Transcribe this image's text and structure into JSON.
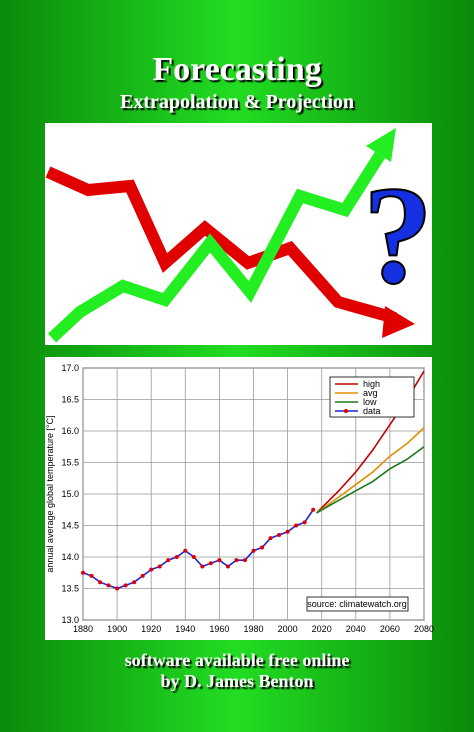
{
  "cover": {
    "title": "Forecasting",
    "subtitle": "Extrapolation & Projection",
    "footer": [
      "software available free online",
      "by D. James Benton"
    ]
  },
  "chart_data": {
    "type": "line",
    "y_label": "annual average global temperature [°C]",
    "annotation": "source: climatewatch.org",
    "xlim": [
      1880,
      2080
    ],
    "xticks": [
      1880,
      1900,
      1920,
      1940,
      1960,
      1980,
      2000,
      2020,
      2040,
      2060,
      2080
    ],
    "ylim": [
      13,
      17
    ],
    "yticks": [
      {
        "value": 13,
        "label": "13.0"
      },
      13.5,
      {
        "value": 14,
        "label": "14.0"
      },
      14.5,
      {
        "value": 15,
        "label": "15.0"
      },
      15.5,
      {
        "value": 16,
        "label": "16.0"
      },
      16.5,
      {
        "value": 17,
        "label": "17.0"
      }
    ],
    "grid": true,
    "series": [
      {
        "name": "high",
        "color": "#c00000",
        "x": [
          2017,
          2030,
          2040,
          2050,
          2060,
          2070,
          2080
        ],
        "values": [
          14.7,
          15.05,
          15.35,
          15.7,
          16.1,
          16.5,
          16.95
        ]
      },
      {
        "name": "avg",
        "color": "#e09000",
        "x": [
          2017,
          2030,
          2040,
          2050,
          2060,
          2070,
          2080
        ],
        "values": [
          14.7,
          14.95,
          15.15,
          15.35,
          15.6,
          15.8,
          16.05
        ]
      },
      {
        "name": "low",
        "color": "#1a7a1a",
        "x": [
          2017,
          2030,
          2040,
          2050,
          2060,
          2070,
          2080
        ],
        "values": [
          14.7,
          14.9,
          15.05,
          15.2,
          15.4,
          15.55,
          15.75
        ]
      },
      {
        "name": "data",
        "color": "#2020e0",
        "marker_color": "#e00000",
        "x": [
          1880,
          1885,
          1890,
          1895,
          1900,
          1905,
          1910,
          1915,
          1920,
          1925,
          1930,
          1935,
          1940,
          1945,
          1950,
          1955,
          1960,
          1965,
          1970,
          1975,
          1980,
          1985,
          1990,
          1995,
          2000,
          2005,
          2010,
          2015
        ],
        "values": [
          13.75,
          13.7,
          13.6,
          13.55,
          13.5,
          13.55,
          13.6,
          13.7,
          13.8,
          13.85,
          13.95,
          14.0,
          14.1,
          14.0,
          13.85,
          13.9,
          13.95,
          13.85,
          13.95,
          13.95,
          14.1,
          14.15,
          14.3,
          14.35,
          14.4,
          14.5,
          14.55,
          14.75
        ]
      }
    ]
  }
}
